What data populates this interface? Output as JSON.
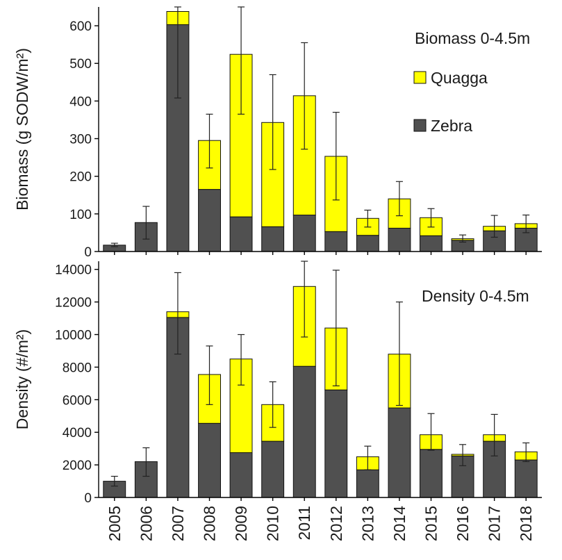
{
  "chart_data": [
    {
      "type": "bar",
      "stacked": true,
      "title": "Biomass 0-4.5m",
      "ylabel": "Biomass (g SODW/m²)",
      "ylim": [
        0,
        650
      ],
      "yticks": [
        0,
        100,
        200,
        300,
        400,
        500,
        600
      ],
      "categories": [
        "2005",
        "2006",
        "2007",
        "2008",
        "2009",
        "2010",
        "2011",
        "2012",
        "2013",
        "2014",
        "2015",
        "2016",
        "2017",
        "2018"
      ],
      "series": [
        {
          "name": "Zebra",
          "color": "#505050",
          "values": [
            17,
            77,
            603,
            165,
            92,
            66,
            97,
            53,
            43,
            62,
            42,
            30,
            55,
            62
          ]
        },
        {
          "name": "Quagga",
          "color": "#ffff00",
          "values": [
            0,
            0,
            35,
            130,
            432,
            277,
            317,
            200,
            45,
            78,
            48,
            4,
            12,
            12
          ]
        }
      ],
      "totals": [
        17,
        77,
        638,
        295,
        524,
        343,
        414,
        253,
        88,
        140,
        90,
        34,
        67,
        74
      ],
      "error_low": [
        13,
        33,
        408,
        222,
        365,
        218,
        272,
        137,
        65,
        95,
        65,
        25,
        38,
        50
      ],
      "error_high": [
        22,
        120,
        650,
        365,
        650,
        470,
        555,
        370,
        110,
        186,
        114,
        44,
        96,
        97
      ],
      "legend": {
        "placement": "top-right",
        "entries": [
          "Quagga",
          "Zebra"
        ]
      }
    },
    {
      "type": "bar",
      "stacked": true,
      "title": "Density 0-4.5m",
      "ylabel": "Density (#/m²)",
      "ylim": [
        0,
        14500
      ],
      "yticks": [
        0,
        2000,
        4000,
        6000,
        8000,
        10000,
        12000,
        14000
      ],
      "categories": [
        "2005",
        "2006",
        "2007",
        "2008",
        "2009",
        "2010",
        "2011",
        "2012",
        "2013",
        "2014",
        "2015",
        "2016",
        "2017",
        "2018"
      ],
      "series": [
        {
          "name": "Zebra",
          "color": "#505050",
          "values": [
            1000,
            2200,
            11050,
            4550,
            2750,
            3450,
            8050,
            6600,
            1700,
            5500,
            2950,
            2550,
            3450,
            2300
          ]
        },
        {
          "name": "Quagga",
          "color": "#ffff00",
          "values": [
            0,
            0,
            350,
            3000,
            5750,
            2250,
            4900,
            3800,
            800,
            3300,
            900,
            100,
            400,
            500
          ]
        }
      ],
      "totals": [
        1000,
        2200,
        11400,
        7550,
        8500,
        5700,
        12950,
        10400,
        2500,
        8800,
        3850,
        2650,
        3850,
        2800
      ],
      "error_low": [
        700,
        1300,
        8800,
        5700,
        6900,
        4300,
        9850,
        6850,
        1700,
        5650,
        2900,
        1950,
        2550,
        2200
      ],
      "error_high": [
        1300,
        3050,
        13800,
        9300,
        10000,
        7100,
        14500,
        13950,
        3150,
        12000,
        5150,
        3250,
        5100,
        3350
      ]
    }
  ]
}
